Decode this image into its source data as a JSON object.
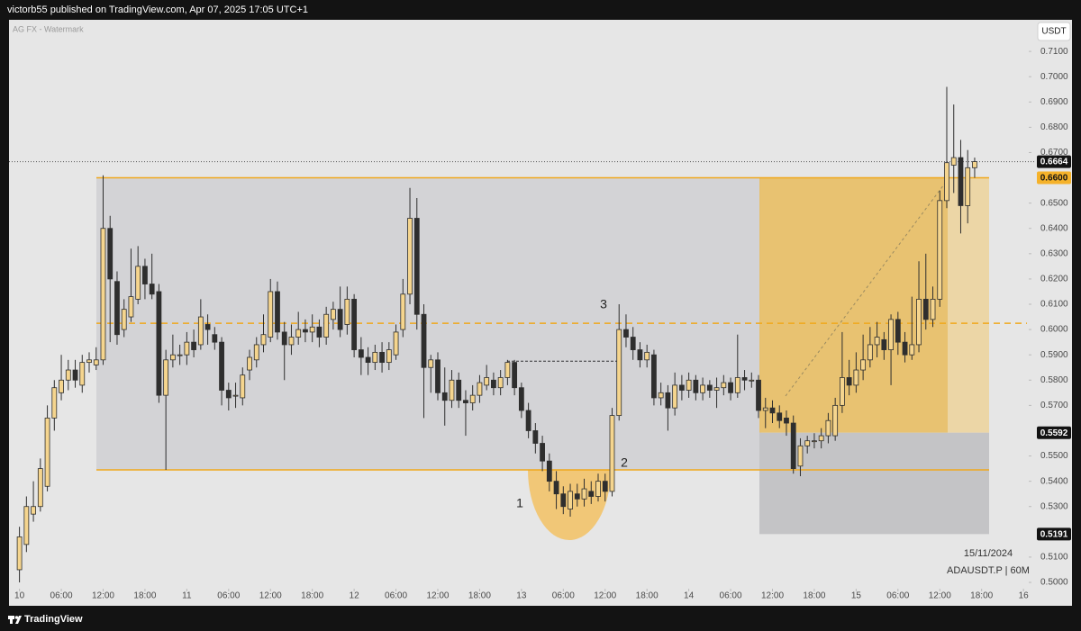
{
  "chart_data": {
    "type": "candlestick",
    "header": "victorb55 published on TradingView.com, Apr 07, 2025 17:05 UTC+1",
    "watermark": "AG FX - Watermark",
    "currency": "USDT",
    "date_label": "15/11/2024",
    "symbol": "ADAUSDT.P | 60M",
    "footer": "TradingView",
    "annotations": [
      "1",
      "2",
      "3"
    ],
    "up_color": "#f5d58e",
    "down_color": "#2e2e2e",
    "wick_color": "#2e2e2e",
    "grid": false,
    "xlim": [
      -1.5,
      144.5
    ],
    "ylim": [
      0.4911,
      0.7225
    ],
    "xticks": [
      {
        "value": 0,
        "label": "10"
      },
      {
        "value": 6,
        "label": "06:00"
      },
      {
        "value": 12,
        "label": "12:00"
      },
      {
        "value": 18,
        "label": "18:00"
      },
      {
        "value": 24,
        "label": "11"
      },
      {
        "value": 30,
        "label": "06:00"
      },
      {
        "value": 36,
        "label": "12:00"
      },
      {
        "value": 42,
        "label": "18:00"
      },
      {
        "value": 48,
        "label": "12"
      },
      {
        "value": 54,
        "label": "06:00"
      },
      {
        "value": 60,
        "label": "12:00"
      },
      {
        "value": 66,
        "label": "18:00"
      },
      {
        "value": 72,
        "label": "13"
      },
      {
        "value": 78,
        "label": "06:00"
      },
      {
        "value": 84,
        "label": "12:00"
      },
      {
        "value": 90,
        "label": "18:00"
      },
      {
        "value": 96,
        "label": "14"
      },
      {
        "value": 102,
        "label": "06:00"
      },
      {
        "value": 108,
        "label": "12:00"
      },
      {
        "value": 114,
        "label": "18:00"
      },
      {
        "value": 120,
        "label": "15"
      },
      {
        "value": 126,
        "label": "06:00"
      },
      {
        "value": 132,
        "label": "12:00"
      },
      {
        "value": 138,
        "label": "18:00"
      },
      {
        "value": 144,
        "label": "16"
      }
    ],
    "yticks": [
      {
        "value": 0.5,
        "label": "0.5000"
      },
      {
        "value": 0.51,
        "label": "0.5100"
      },
      {
        "value": 0.53,
        "label": "0.5300"
      },
      {
        "value": 0.54,
        "label": "0.5400"
      },
      {
        "value": 0.55,
        "label": "0.5500"
      },
      {
        "value": 0.57,
        "label": "0.5700"
      },
      {
        "value": 0.58,
        "label": "0.5800"
      },
      {
        "value": 0.59,
        "label": "0.5900"
      },
      {
        "value": 0.6,
        "label": "0.6000"
      },
      {
        "value": 0.61,
        "label": "0.6100"
      },
      {
        "value": 0.62,
        "label": "0.6200"
      },
      {
        "value": 0.63,
        "label": "0.6300"
      },
      {
        "value": 0.64,
        "label": "0.6400"
      },
      {
        "value": 0.65,
        "label": "0.6500"
      },
      {
        "value": 0.67,
        "label": "0.6700"
      },
      {
        "value": 0.68,
        "label": "0.6800"
      },
      {
        "value": 0.69,
        "label": "0.6900"
      },
      {
        "value": 0.7,
        "label": "0.7000"
      },
      {
        "value": 0.71,
        "label": "0.7100"
      }
    ],
    "price_labels": [
      {
        "value": 0.6664,
        "label": "0.6664"
      },
      {
        "value": 0.66,
        "label": "0.6600"
      },
      {
        "value": 0.5592,
        "label": "0.5592"
      },
      {
        "value": 0.5191,
        "label": "0.5191"
      }
    ],
    "range": {
      "high": 0.66,
      "low": 0.5445,
      "mid": 0.6025
    },
    "breakout_level": 0.5875,
    "position": {
      "target": 0.66,
      "entry": 0.5592,
      "stop": 0.5191
    },
    "open": [
      0.505,
      0.515,
      0.527,
      0.53,
      0.538,
      0.565,
      0.575,
      0.58,
      0.584,
      0.578,
      0.587,
      0.586,
      0.588,
      0.64,
      0.619,
      0.6,
      0.605,
      0.612,
      0.625,
      0.618,
      0.615,
      0.574,
      0.588,
      0.59,
      0.59,
      0.595,
      0.594,
      0.602,
      0.598,
      0.595,
      0.576,
      0.574,
      0.573,
      0.584,
      0.588,
      0.594,
      0.597,
      0.615,
      0.599,
      0.594,
      0.597,
      0.6,
      0.599,
      0.601,
      0.597,
      0.604,
      0.608,
      0.602,
      0.612,
      0.592,
      0.589,
      0.587,
      0.591,
      0.587,
      0.59,
      0.6,
      0.614,
      0.644,
      0.606,
      0.585,
      0.588,
      0.575,
      0.572,
      0.58,
      0.572,
      0.571,
      0.574,
      0.578,
      0.58,
      0.577,
      0.581,
      0.587,
      0.577,
      0.568,
      0.56,
      0.555,
      0.548,
      0.54,
      0.535,
      0.529,
      0.535,
      0.533,
      0.536,
      0.534,
      0.54,
      0.536,
      0.566,
      0.6,
      0.597,
      0.592,
      0.588,
      0.59,
      0.573,
      0.575,
      0.569,
      0.578,
      0.576,
      0.58,
      0.575,
      0.578,
      0.576,
      0.577,
      0.579,
      0.575,
      0.581,
      0.58,
      0.58,
      0.568,
      0.569,
      0.567,
      0.565,
      0.563,
      0.546,
      0.554,
      0.556,
      0.556,
      0.558,
      0.558,
      0.57,
      0.581,
      0.578,
      0.584,
      0.588,
      0.594,
      0.596,
      0.592,
      0.604,
      0.595,
      0.59,
      0.594,
      0.612,
      0.604,
      0.612,
      0.651,
      0.665,
      0.668,
      0.649,
      0.664
    ],
    "high": [
      0.522,
      0.534,
      0.54,
      0.549,
      0.57,
      0.58,
      0.59,
      0.588,
      0.588,
      0.59,
      0.591,
      0.593,
      0.661,
      0.645,
      0.623,
      0.612,
      0.632,
      0.633,
      0.628,
      0.63,
      0.618,
      0.592,
      0.598,
      0.594,
      0.599,
      0.6,
      0.612,
      0.606,
      0.601,
      0.597,
      0.579,
      0.579,
      0.585,
      0.592,
      0.597,
      0.606,
      0.62,
      0.619,
      0.603,
      0.602,
      0.607,
      0.604,
      0.606,
      0.604,
      0.609,
      0.611,
      0.617,
      0.617,
      0.614,
      0.597,
      0.593,
      0.594,
      0.595,
      0.595,
      0.602,
      0.62,
      0.656,
      0.652,
      0.61,
      0.59,
      0.591,
      0.585,
      0.584,
      0.583,
      0.576,
      0.578,
      0.582,
      0.586,
      0.583,
      0.584,
      0.588,
      0.588,
      0.579,
      0.571,
      0.563,
      0.558,
      0.551,
      0.544,
      0.538,
      0.539,
      0.539,
      0.541,
      0.54,
      0.543,
      0.543,
      0.569,
      0.61,
      0.606,
      0.601,
      0.595,
      0.594,
      0.592,
      0.579,
      0.578,
      0.583,
      0.582,
      0.583,
      0.582,
      0.581,
      0.58,
      0.581,
      0.582,
      0.581,
      0.598,
      0.584,
      0.583,
      0.582,
      0.573,
      0.572,
      0.57,
      0.568,
      0.566,
      0.557,
      0.558,
      0.559,
      0.561,
      0.567,
      0.573,
      0.599,
      0.588,
      0.591,
      0.598,
      0.601,
      0.603,
      0.599,
      0.606,
      0.607,
      0.599,
      0.613,
      0.627,
      0.63,
      0.617,
      0.655,
      0.696,
      0.689,
      0.675,
      0.671,
      0.668
    ],
    "low": [
      0.5,
      0.512,
      0.524,
      0.528,
      0.536,
      0.56,
      0.572,
      0.576,
      0.577,
      0.575,
      0.583,
      0.584,
      0.586,
      0.595,
      0.594,
      0.597,
      0.603,
      0.61,
      0.612,
      0.612,
      0.571,
      0.5445,
      0.585,
      0.586,
      0.586,
      0.589,
      0.592,
      0.594,
      0.592,
      0.57,
      0.568,
      0.569,
      0.57,
      0.58,
      0.585,
      0.591,
      0.595,
      0.596,
      0.58,
      0.59,
      0.594,
      0.595,
      0.595,
      0.593,
      0.594,
      0.6,
      0.597,
      0.598,
      0.589,
      0.582,
      0.582,
      0.584,
      0.583,
      0.584,
      0.588,
      0.597,
      0.61,
      0.6,
      0.565,
      0.575,
      0.572,
      0.562,
      0.569,
      0.569,
      0.558,
      0.568,
      0.571,
      0.576,
      0.574,
      0.574,
      0.578,
      0.574,
      0.565,
      0.557,
      0.551,
      0.544,
      0.536,
      0.529,
      0.527,
      0.526,
      0.53,
      0.53,
      0.531,
      0.532,
      0.532,
      0.534,
      0.564,
      0.593,
      0.588,
      0.585,
      0.585,
      0.57,
      0.57,
      0.56,
      0.566,
      0.572,
      0.573,
      0.572,
      0.572,
      0.573,
      0.569,
      0.574,
      0.572,
      0.573,
      0.576,
      0.577,
      0.565,
      0.561,
      0.563,
      0.561,
      0.558,
      0.543,
      0.542,
      0.551,
      0.553,
      0.553,
      0.555,
      0.556,
      0.567,
      0.574,
      0.575,
      0.58,
      0.585,
      0.589,
      0.588,
      0.578,
      0.59,
      0.587,
      0.588,
      0.591,
      0.6,
      0.601,
      0.609,
      0.648,
      0.654,
      0.638,
      0.642,
      0.66
    ],
    "close": [
      0.518,
      0.53,
      0.53,
      0.545,
      0.565,
      0.577,
      0.58,
      0.584,
      0.58,
      0.587,
      0.588,
      0.588,
      0.64,
      0.62,
      0.598,
      0.608,
      0.613,
      0.625,
      0.618,
      0.614,
      0.574,
      0.588,
      0.59,
      0.59,
      0.595,
      0.592,
      0.605,
      0.6,
      0.595,
      0.576,
      0.573,
      0.574,
      0.582,
      0.589,
      0.594,
      0.598,
      0.615,
      0.599,
      0.594,
      0.597,
      0.6,
      0.599,
      0.601,
      0.597,
      0.606,
      0.608,
      0.6,
      0.612,
      0.592,
      0.589,
      0.587,
      0.591,
      0.587,
      0.592,
      0.599,
      0.614,
      0.644,
      0.606,
      0.585,
      0.588,
      0.575,
      0.572,
      0.58,
      0.572,
      0.571,
      0.574,
      0.579,
      0.581,
      0.577,
      0.581,
      0.587,
      0.577,
      0.568,
      0.56,
      0.555,
      0.548,
      0.54,
      0.535,
      0.53,
      0.536,
      0.533,
      0.537,
      0.534,
      0.54,
      0.536,
      0.566,
      0.6,
      0.597,
      0.592,
      0.588,
      0.591,
      0.573,
      0.575,
      0.569,
      0.578,
      0.576,
      0.58,
      0.575,
      0.578,
      0.576,
      0.577,
      0.579,
      0.575,
      0.581,
      0.58,
      0.58,
      0.568,
      0.569,
      0.567,
      0.564,
      0.563,
      0.545,
      0.554,
      0.556,
      0.556,
      0.558,
      0.564,
      0.57,
      0.581,
      0.578,
      0.584,
      0.588,
      0.594,
      0.597,
      0.592,
      0.604,
      0.595,
      0.59,
      0.594,
      0.612,
      0.604,
      0.612,
      0.651,
      0.666,
      0.668,
      0.649,
      0.664,
      0.6664
    ]
  }
}
